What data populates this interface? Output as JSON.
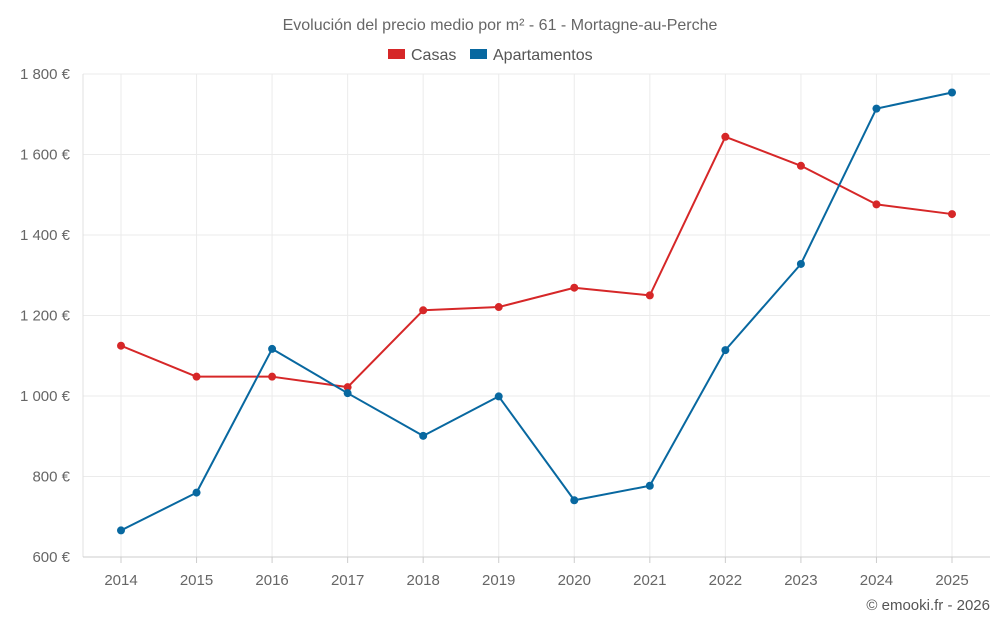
{
  "chart_data": {
    "type": "line",
    "title": "Evolución del precio medio por m² - 61 - Mortagne-au-Perche",
    "categories": [
      "2014",
      "2015",
      "2016",
      "2017",
      "2018",
      "2019",
      "2020",
      "2021",
      "2022",
      "2023",
      "2024",
      "2025"
    ],
    "y_ticks": [
      600,
      800,
      1000,
      1200,
      1400,
      1600,
      1800
    ],
    "y_tick_labels": [
      "600 €",
      "800 €",
      "1 000 €",
      "1 200 €",
      "1 400 €",
      "1 600 €",
      "1 800 €"
    ],
    "ylim": [
      600,
      1800
    ],
    "grid": true,
    "legend_position": "top-center",
    "series": [
      {
        "name": "Casas",
        "color": "#d62728",
        "values": [
          1125,
          1048,
          1048,
          1022,
          1213,
          1221,
          1269,
          1250,
          1644,
          1572,
          1476,
          1452
        ]
      },
      {
        "name": "Apartamentos",
        "color": "#0868a0",
        "values": [
          666,
          760,
          1117,
          1007,
          901,
          999,
          741,
          777,
          1114,
          1328,
          1714,
          1754
        ]
      }
    ],
    "footer": "© emooki.fr - 2026"
  }
}
